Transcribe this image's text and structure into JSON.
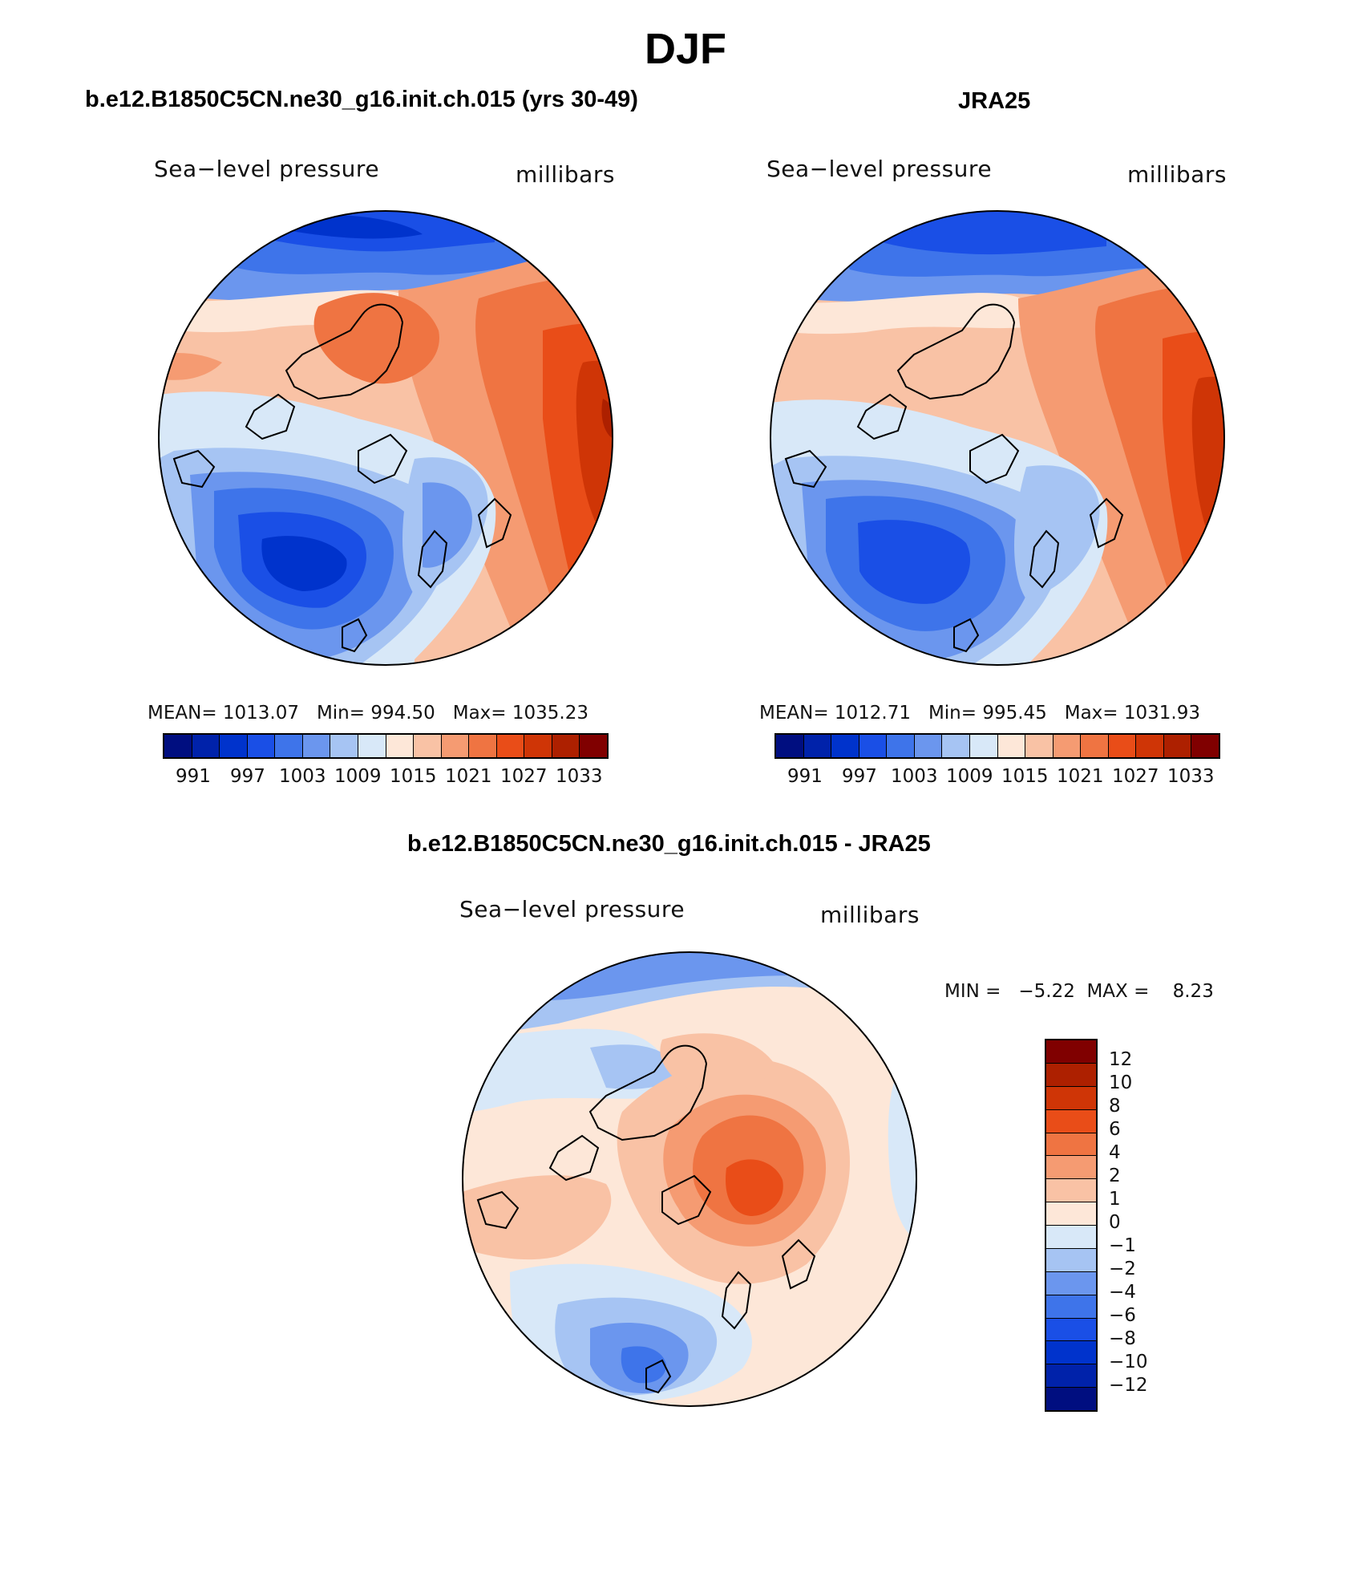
{
  "title": "DJF",
  "colors": {
    "abs_scale": [
      "#000e80",
      "#0022aa",
      "#0033cc",
      "#1a4fe6",
      "#3e74ea",
      "#6b96ee",
      "#a6c4f3",
      "#d8e8f8",
      "#fde7d8",
      "#f9c2a5",
      "#f59b72",
      "#ef7442",
      "#e94d18",
      "#cf3506",
      "#ad2000",
      "#800000"
    ],
    "diff_scale": [
      "#800000",
      "#ad2000",
      "#cf3506",
      "#e94d18",
      "#ef7442",
      "#f59b72",
      "#f9c2a5",
      "#fde7d8",
      "#d8e8f8",
      "#a6c4f3",
      "#6b96ee",
      "#3e74ea",
      "#1a4fe6",
      "#0033cc",
      "#0022aa",
      "#000e80"
    ]
  },
  "panels": [
    {
      "heading": "b.e12.B1850C5CN.ne30_g16.init.ch.015 (yrs 30-49)",
      "left_label": "Sea−level pressure",
      "right_label": "millibars",
      "stats": "MEAN= 1013.07   Min= 994.50   Max= 1035.23",
      "scale_ticks": [
        "991",
        "997",
        "1003",
        "1009",
        "1015",
        "1021",
        "1027",
        "1033"
      ]
    },
    {
      "heading": "JRA25",
      "left_label": "Sea−level pressure",
      "right_label": "millibars",
      "stats": "MEAN= 1012.71   Min= 995.45   Max= 1031.93",
      "scale_ticks": [
        "991",
        "997",
        "1003",
        "1009",
        "1015",
        "1021",
        "1027",
        "1033"
      ]
    }
  ],
  "difference": {
    "heading": "b.e12.B1850C5CN.ne30_g16.init.ch.015 - JRA25",
    "left_label": "Sea−level pressure",
    "right_label": "millibars",
    "minmax": "MIN =   −5.22  MAX =    8.23",
    "scale_ticks": [
      "12",
      "10",
      "8",
      "6",
      "4",
      "2",
      "1",
      "0",
      "−1",
      "−2",
      "−4",
      "−6",
      "−8",
      "−10",
      "−12"
    ]
  }
}
